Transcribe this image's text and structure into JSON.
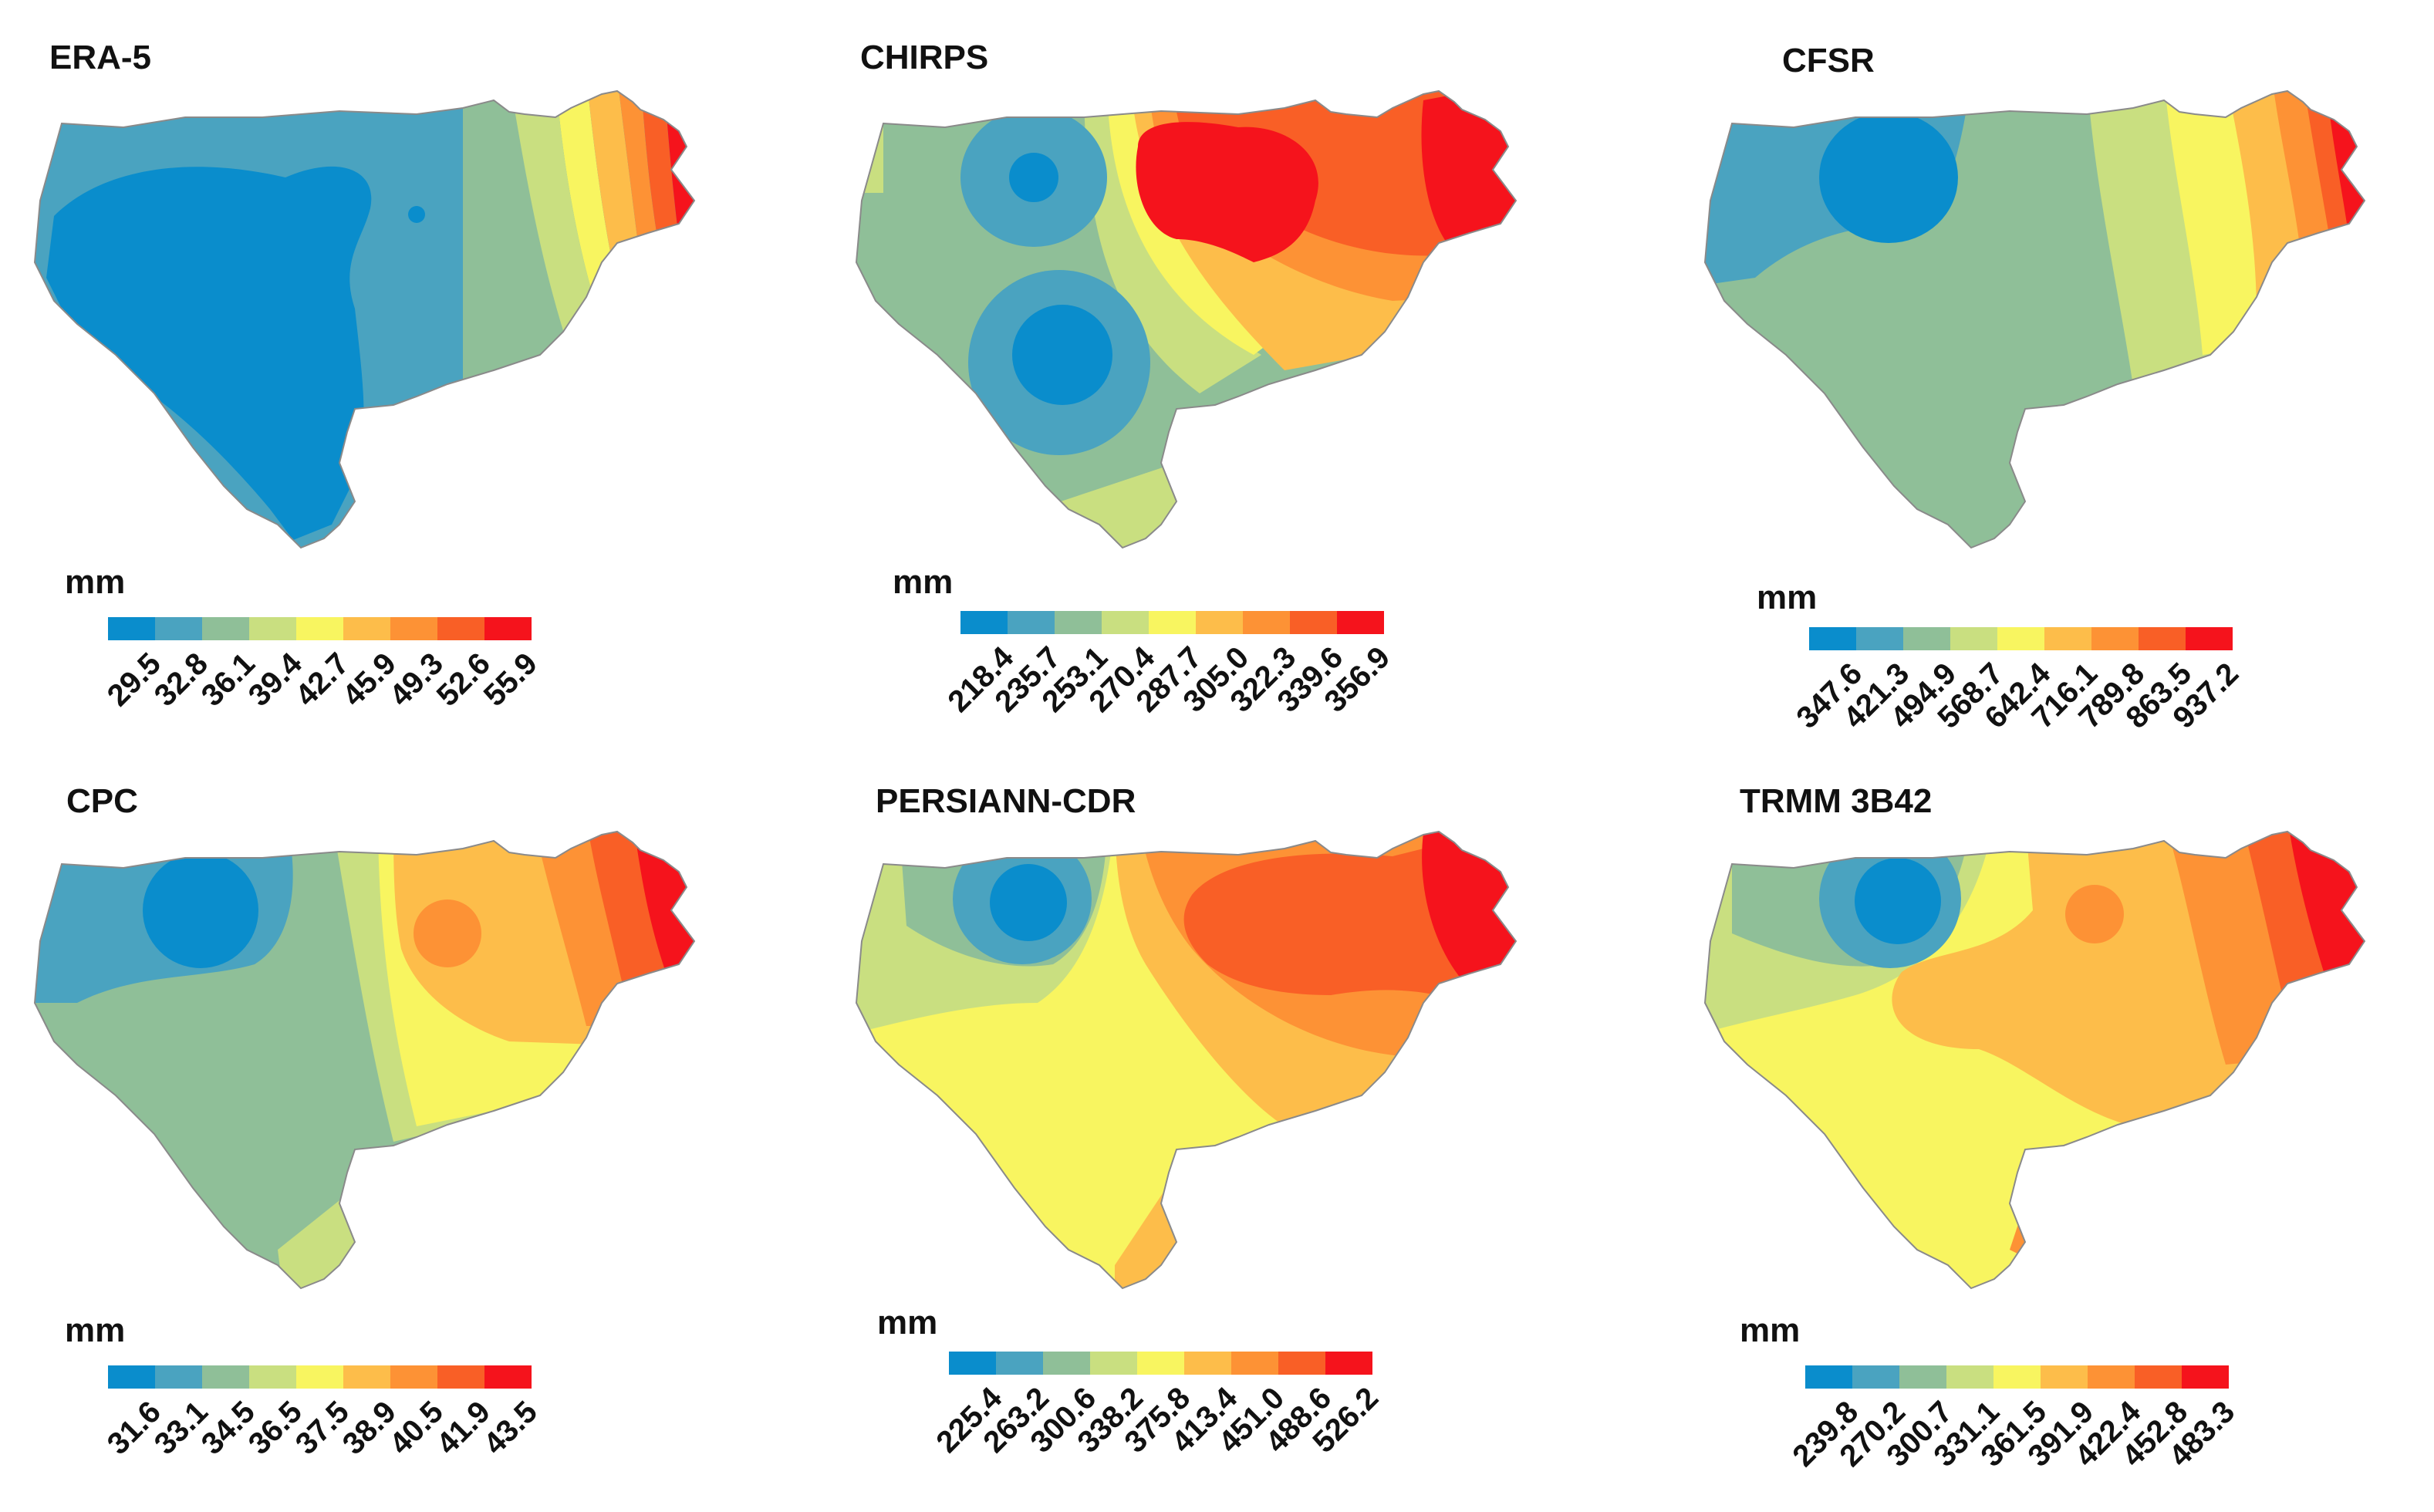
{
  "unit_label": "mm",
  "palette": [
    "#0a8dcc",
    "#4aa3c0",
    "#8fbf98",
    "#c9df80",
    "#f8f560",
    "#fdbd4a",
    "#fd9235",
    "#f95f26",
    "#f5131c"
  ],
  "panels": [
    {
      "title": "ERA-5",
      "legend": [
        "29.5",
        "32.8",
        "36.1",
        "39.4",
        "42.7",
        "45.9",
        "49.3",
        "52.6",
        "55.9"
      ]
    },
    {
      "title": "CHIRPS",
      "legend": [
        "218.4",
        "235.7",
        "253.1",
        "270.4",
        "287.7",
        "305.0",
        "322.3",
        "339.6",
        "356.9"
      ]
    },
    {
      "title": "CFSR",
      "legend": [
        "347.6",
        "421.3",
        "494.9",
        "568.7",
        "642.4",
        "716.1",
        "789.8",
        "863.5",
        "937.2"
      ]
    },
    {
      "title": "CPC",
      "legend": [
        "31.6",
        "33.1",
        "34.5",
        "36.5",
        "37.5",
        "38.9",
        "40.5",
        "41.9",
        "43.5"
      ]
    },
    {
      "title": "PERSIANN-CDR",
      "legend": [
        "225.4",
        "263.2",
        "300.6",
        "338.2",
        "375.8",
        "413.4",
        "451.0",
        "488.6",
        "526.2"
      ]
    },
    {
      "title": "TRMM 3B42",
      "legend": [
        "239.8",
        "270.2",
        "300.7",
        "331.1",
        "361.5",
        "391.9",
        "422.4",
        "452.8",
        "483.3"
      ]
    }
  ]
}
